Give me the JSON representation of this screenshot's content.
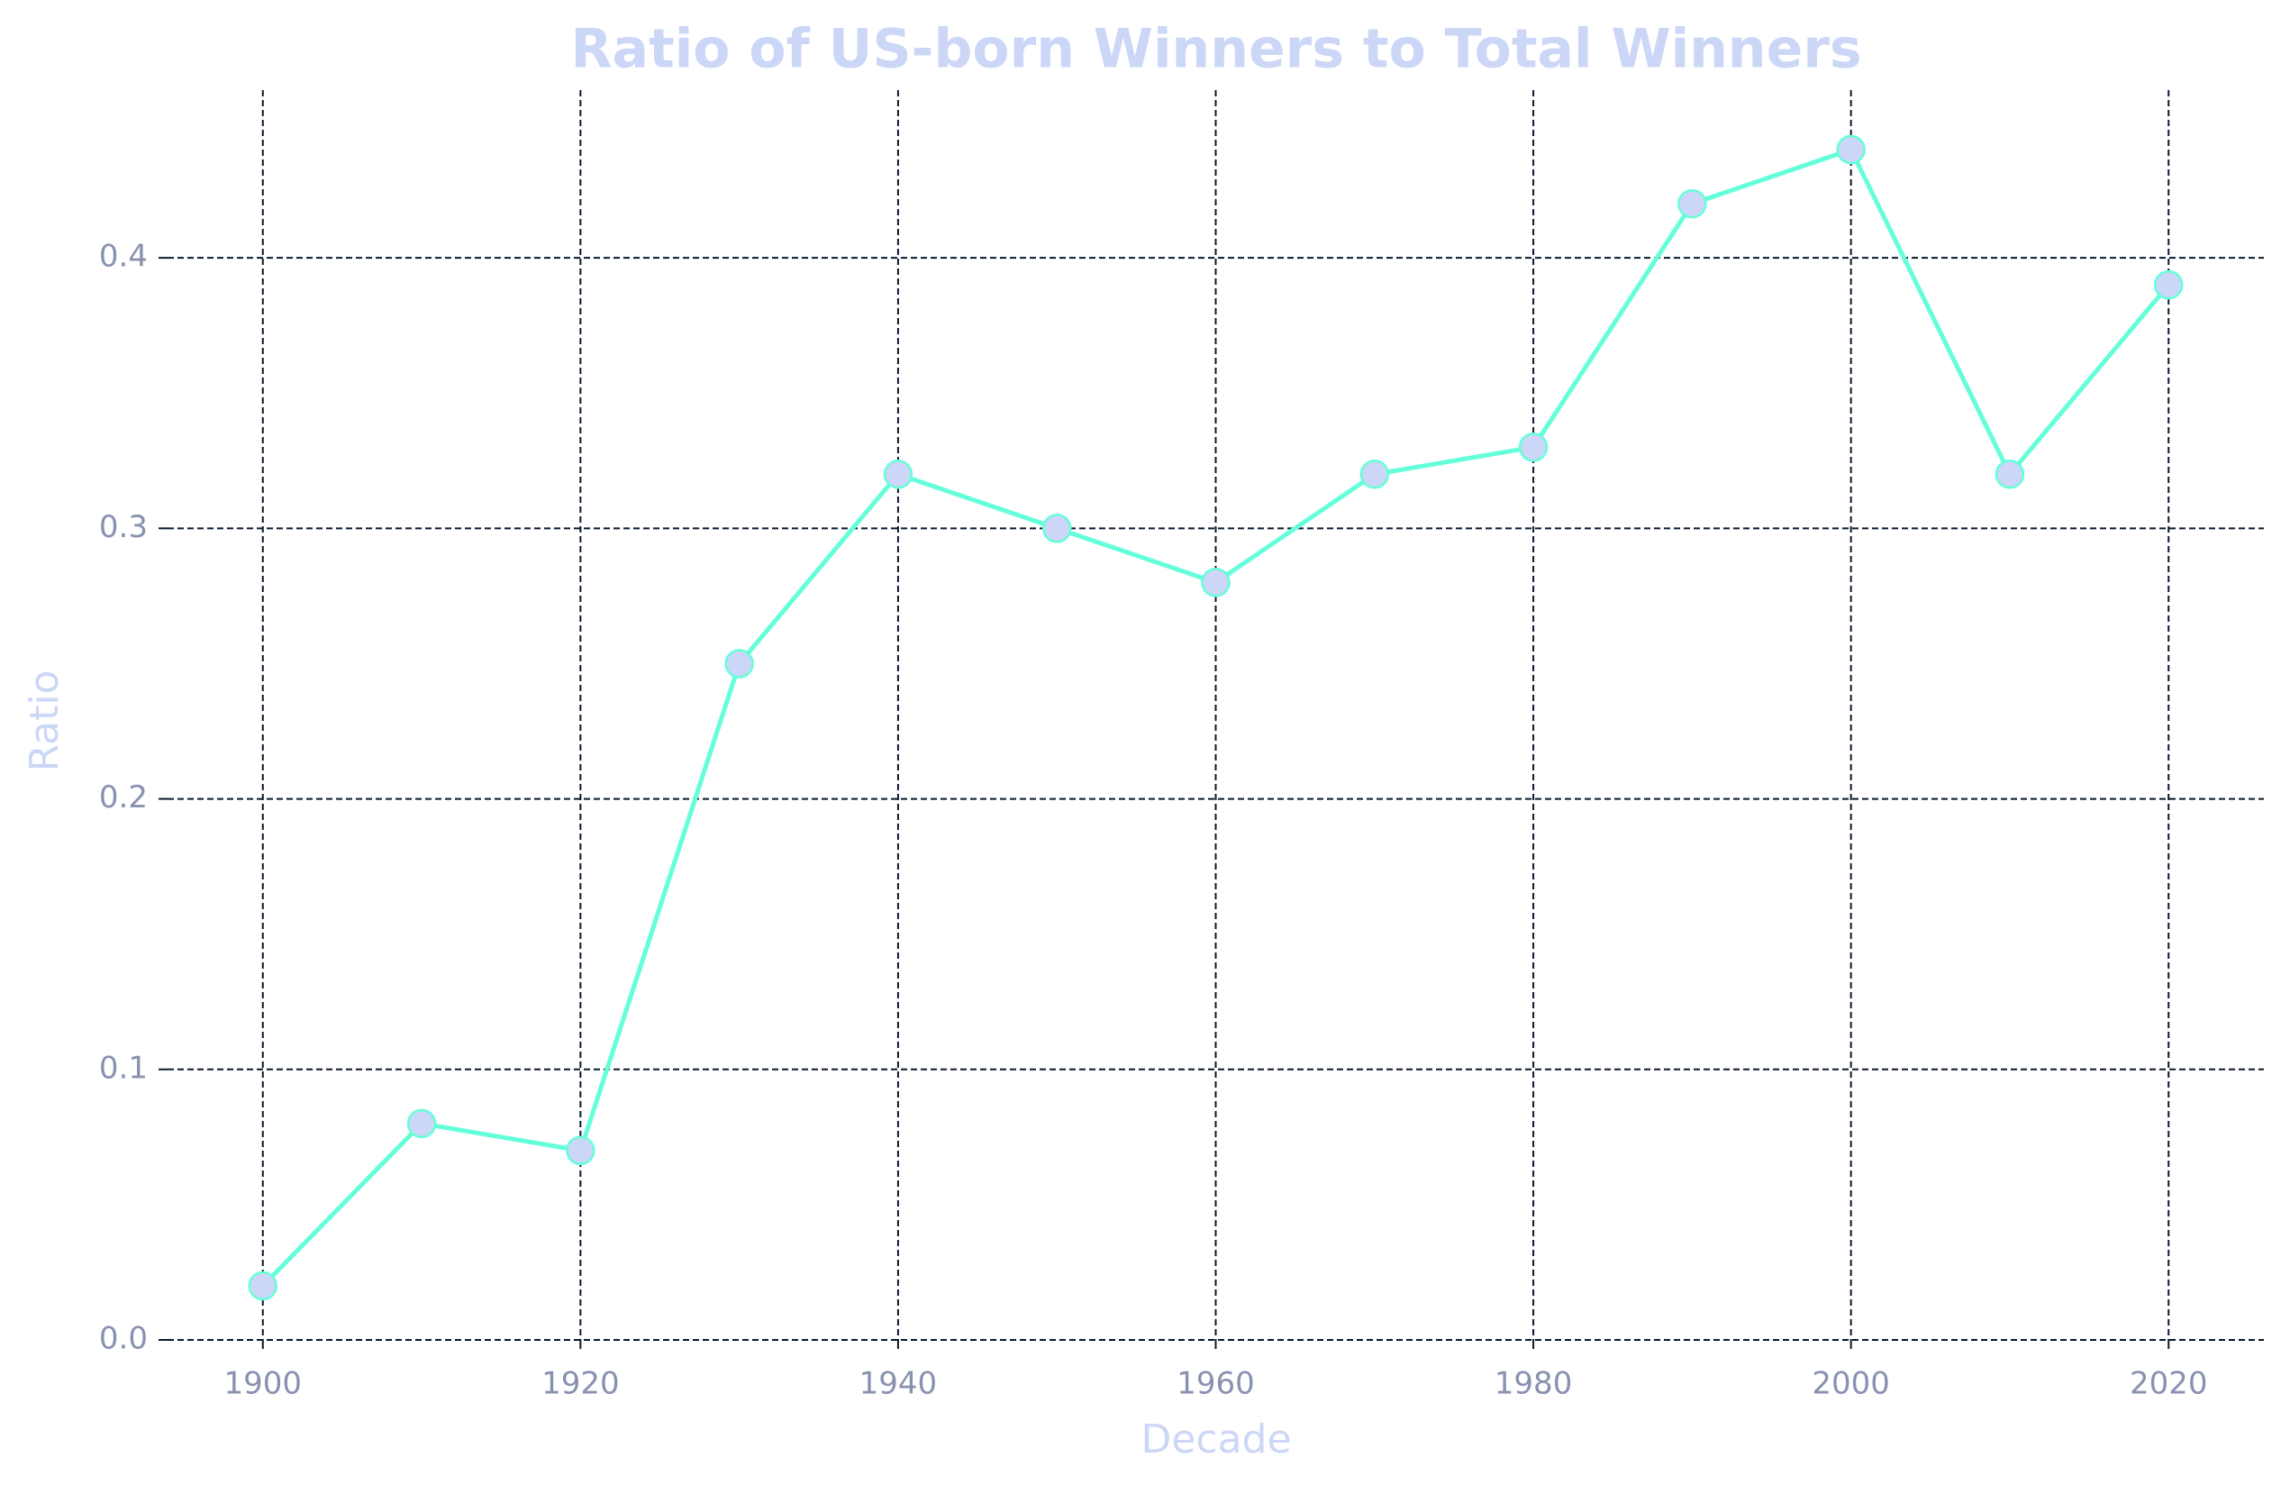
{
  "chart_data": {
    "type": "line",
    "title": "Ratio of US-born Winners to Total Winners",
    "x_label": "Decade",
    "y_label": "Ratio",
    "x": [
      1900,
      1910,
      1920,
      1930,
      1940,
      1950,
      1960,
      1970,
      1980,
      1990,
      2000,
      2010,
      2020
    ],
    "series": [
      {
        "name": "Ratio",
        "color": "#64ffda",
        "marker_color": "#ccd6f6",
        "values": [
          0.02,
          0.08,
          0.07,
          0.25,
          0.32,
          0.3,
          0.28,
          0.32,
          0.33,
          0.42,
          0.44,
          0.32,
          0.39
        ]
      }
    ],
    "xlim": [
      1894,
      2026
    ],
    "ylim": [
      0,
      0.462
    ],
    "xticks": [
      1900,
      1920,
      1940,
      1960,
      1980,
      2000,
      2020
    ],
    "yticks": [
      {
        "value": 0,
        "label": "0.0"
      },
      0.1,
      0.2,
      0.3,
      0.4
    ],
    "grid": true,
    "grid_color": "#0a192f"
  }
}
